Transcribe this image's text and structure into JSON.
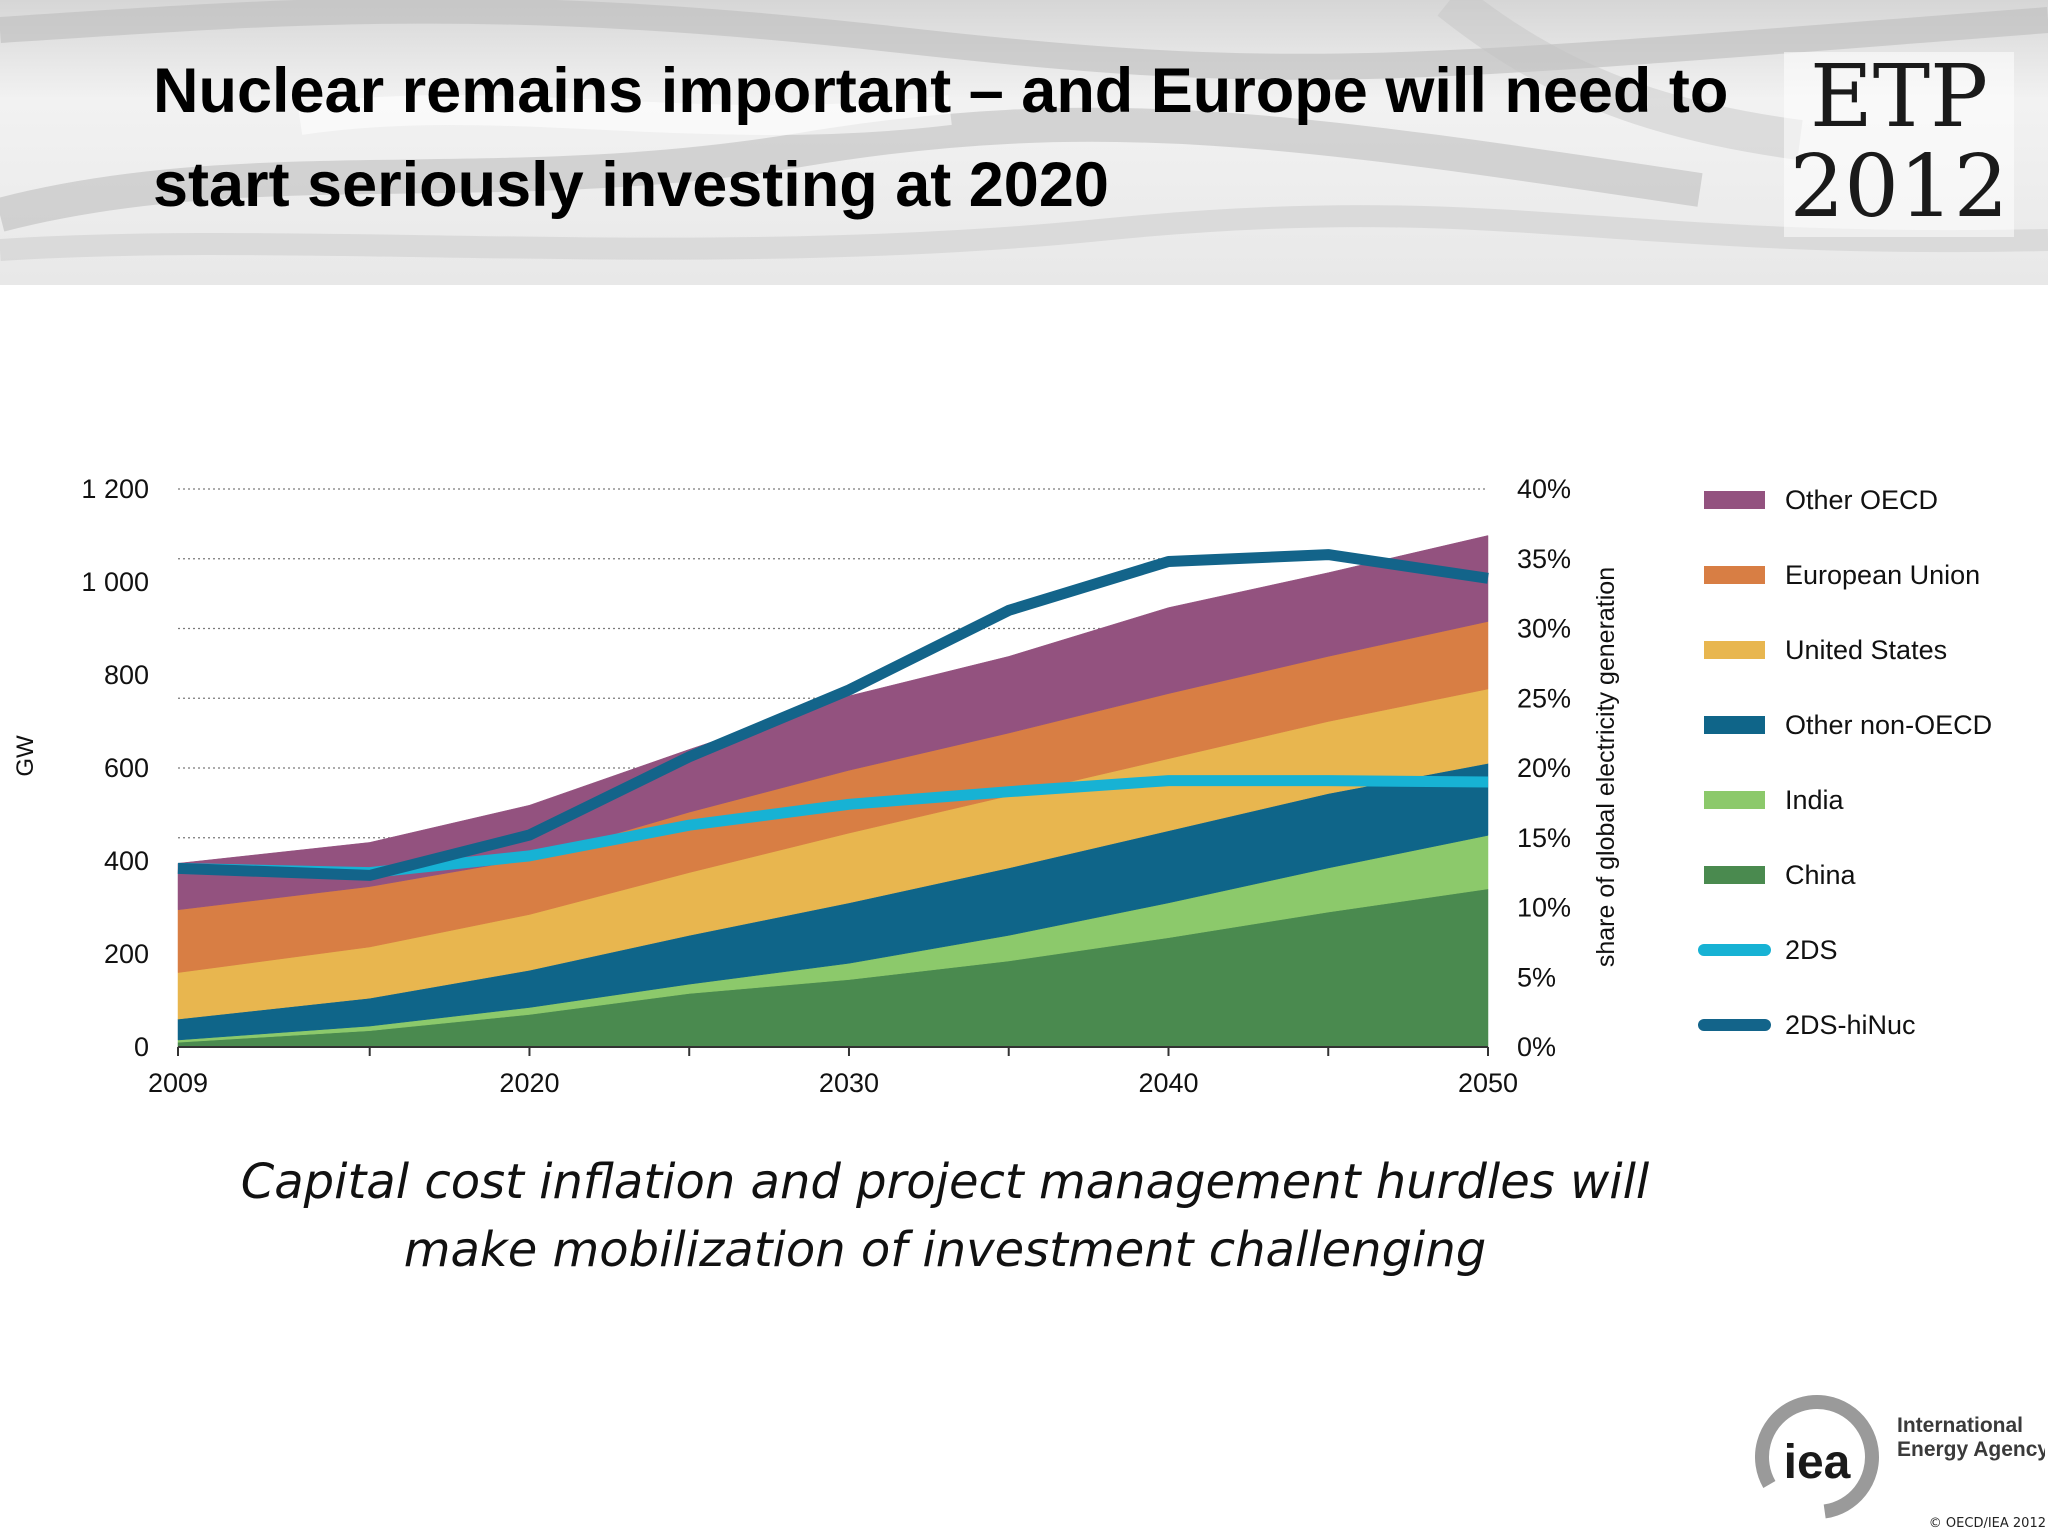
{
  "header": {
    "title": "Nuclear remains important – and Europe will need to start seriously investing at 2020",
    "logo_line1": "ETP",
    "logo_line2": "2012"
  },
  "chart_data": {
    "type": "area",
    "x": [
      2009,
      2015,
      2020,
      2025,
      2030,
      2035,
      2040,
      2045,
      2050
    ],
    "x_tick_labels": [
      "2009",
      "2020",
      "2030",
      "2040",
      "2050"
    ],
    "y_tick_labels": [
      "0",
      "200",
      "400",
      "600",
      "800",
      "1 000",
      "1 200"
    ],
    "y2_tick_labels": [
      "0%",
      "5%",
      "10%",
      "15%",
      "20%",
      "25%",
      "30%",
      "35%",
      "40%"
    ],
    "ylabel": "GW",
    "y2label": "share of global electricity generation",
    "ylim": [
      0,
      1200
    ],
    "y2lim": [
      0,
      40
    ],
    "grid": true,
    "legend_position": "right",
    "stacked_series": [
      {
        "name": "China",
        "color": "#4a8a4f",
        "values": [
          10,
          35,
          70,
          115,
          145,
          185,
          235,
          290,
          340
        ]
      },
      {
        "name": "India",
        "color": "#8cc96b",
        "values": [
          5,
          10,
          15,
          20,
          35,
          55,
          75,
          95,
          115
        ]
      },
      {
        "name": "Other non-OECD",
        "color": "#0f6589",
        "values": [
          45,
          60,
          80,
          105,
          130,
          145,
          155,
          160,
          155
        ]
      },
      {
        "name": "United States",
        "color": "#e8b64f",
        "values": [
          100,
          110,
          120,
          135,
          150,
          155,
          155,
          155,
          160
        ]
      },
      {
        "name": "European Union",
        "color": "#d87e44",
        "values": [
          135,
          130,
          120,
          130,
          135,
          135,
          140,
          140,
          145
        ]
      },
      {
        "name": "Other OECD",
        "color": "#93527f",
        "values": [
          100,
          95,
          115,
          135,
          160,
          165,
          185,
          180,
          185
        ]
      }
    ],
    "line_series": [
      {
        "name": "2DS",
        "color": "#17b2d4",
        "axis": "right",
        "values": [
          12.8,
          12.5,
          13.7,
          15.9,
          17.4,
          18.3,
          19.1,
          19.1,
          19.0
        ]
      },
      {
        "name": "2DS-hiNuc",
        "color": "#13648a",
        "axis": "right",
        "values": [
          12.8,
          12.3,
          15.2,
          20.8,
          25.6,
          31.3,
          34.8,
          35.3,
          33.6
        ]
      }
    ],
    "legend_order": [
      "Other OECD",
      "European Union",
      "United States",
      "Other non-OECD",
      "India",
      "China",
      "2DS",
      "2DS-hiNuc"
    ]
  },
  "subtitle": {
    "line1": "Capital cost inflation and project management hurdles will",
    "line2": "make mobilization of investment challenging"
  },
  "footer": {
    "logo_text": "iea",
    "org_line1": "International",
    "org_line2": "Energy Agency",
    "copyright": "© OECD/IEA 2012"
  }
}
